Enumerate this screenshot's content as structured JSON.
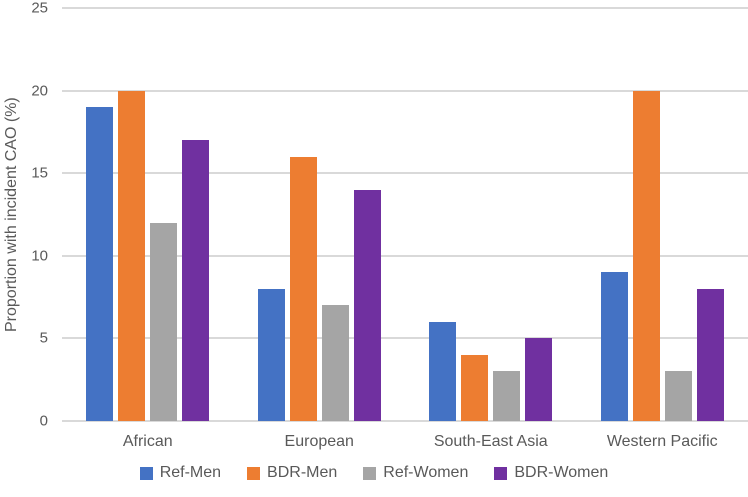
{
  "figure": {
    "background": "#ffffff",
    "axis_text_color": "#595959",
    "gridline_color": "#D9D9D9"
  },
  "chart_data": {
    "type": "bar",
    "title": "",
    "xlabel": "",
    "ylabel": "Proportion with incident CAO (%)",
    "categories": [
      "African",
      "European",
      "South-East Asia",
      "Western Pacific"
    ],
    "series": [
      {
        "name": "Ref-Men",
        "color": "#4472C4",
        "values": [
          19,
          8,
          6,
          9
        ]
      },
      {
        "name": "BDR-Men",
        "color": "#ED7D31",
        "values": [
          20,
          16,
          4,
          20
        ]
      },
      {
        "name": "Ref-Women",
        "color": "#A5A5A5",
        "values": [
          12,
          7,
          3,
          3
        ]
      },
      {
        "name": "BDR-Women",
        "color": "#7030A0",
        "values": [
          17,
          14,
          5,
          8
        ]
      }
    ],
    "ylim": [
      0,
      25
    ],
    "yticks": [
      0,
      5,
      10,
      15,
      20,
      25
    ],
    "grid": "horizontal",
    "legend_position": "bottom"
  }
}
